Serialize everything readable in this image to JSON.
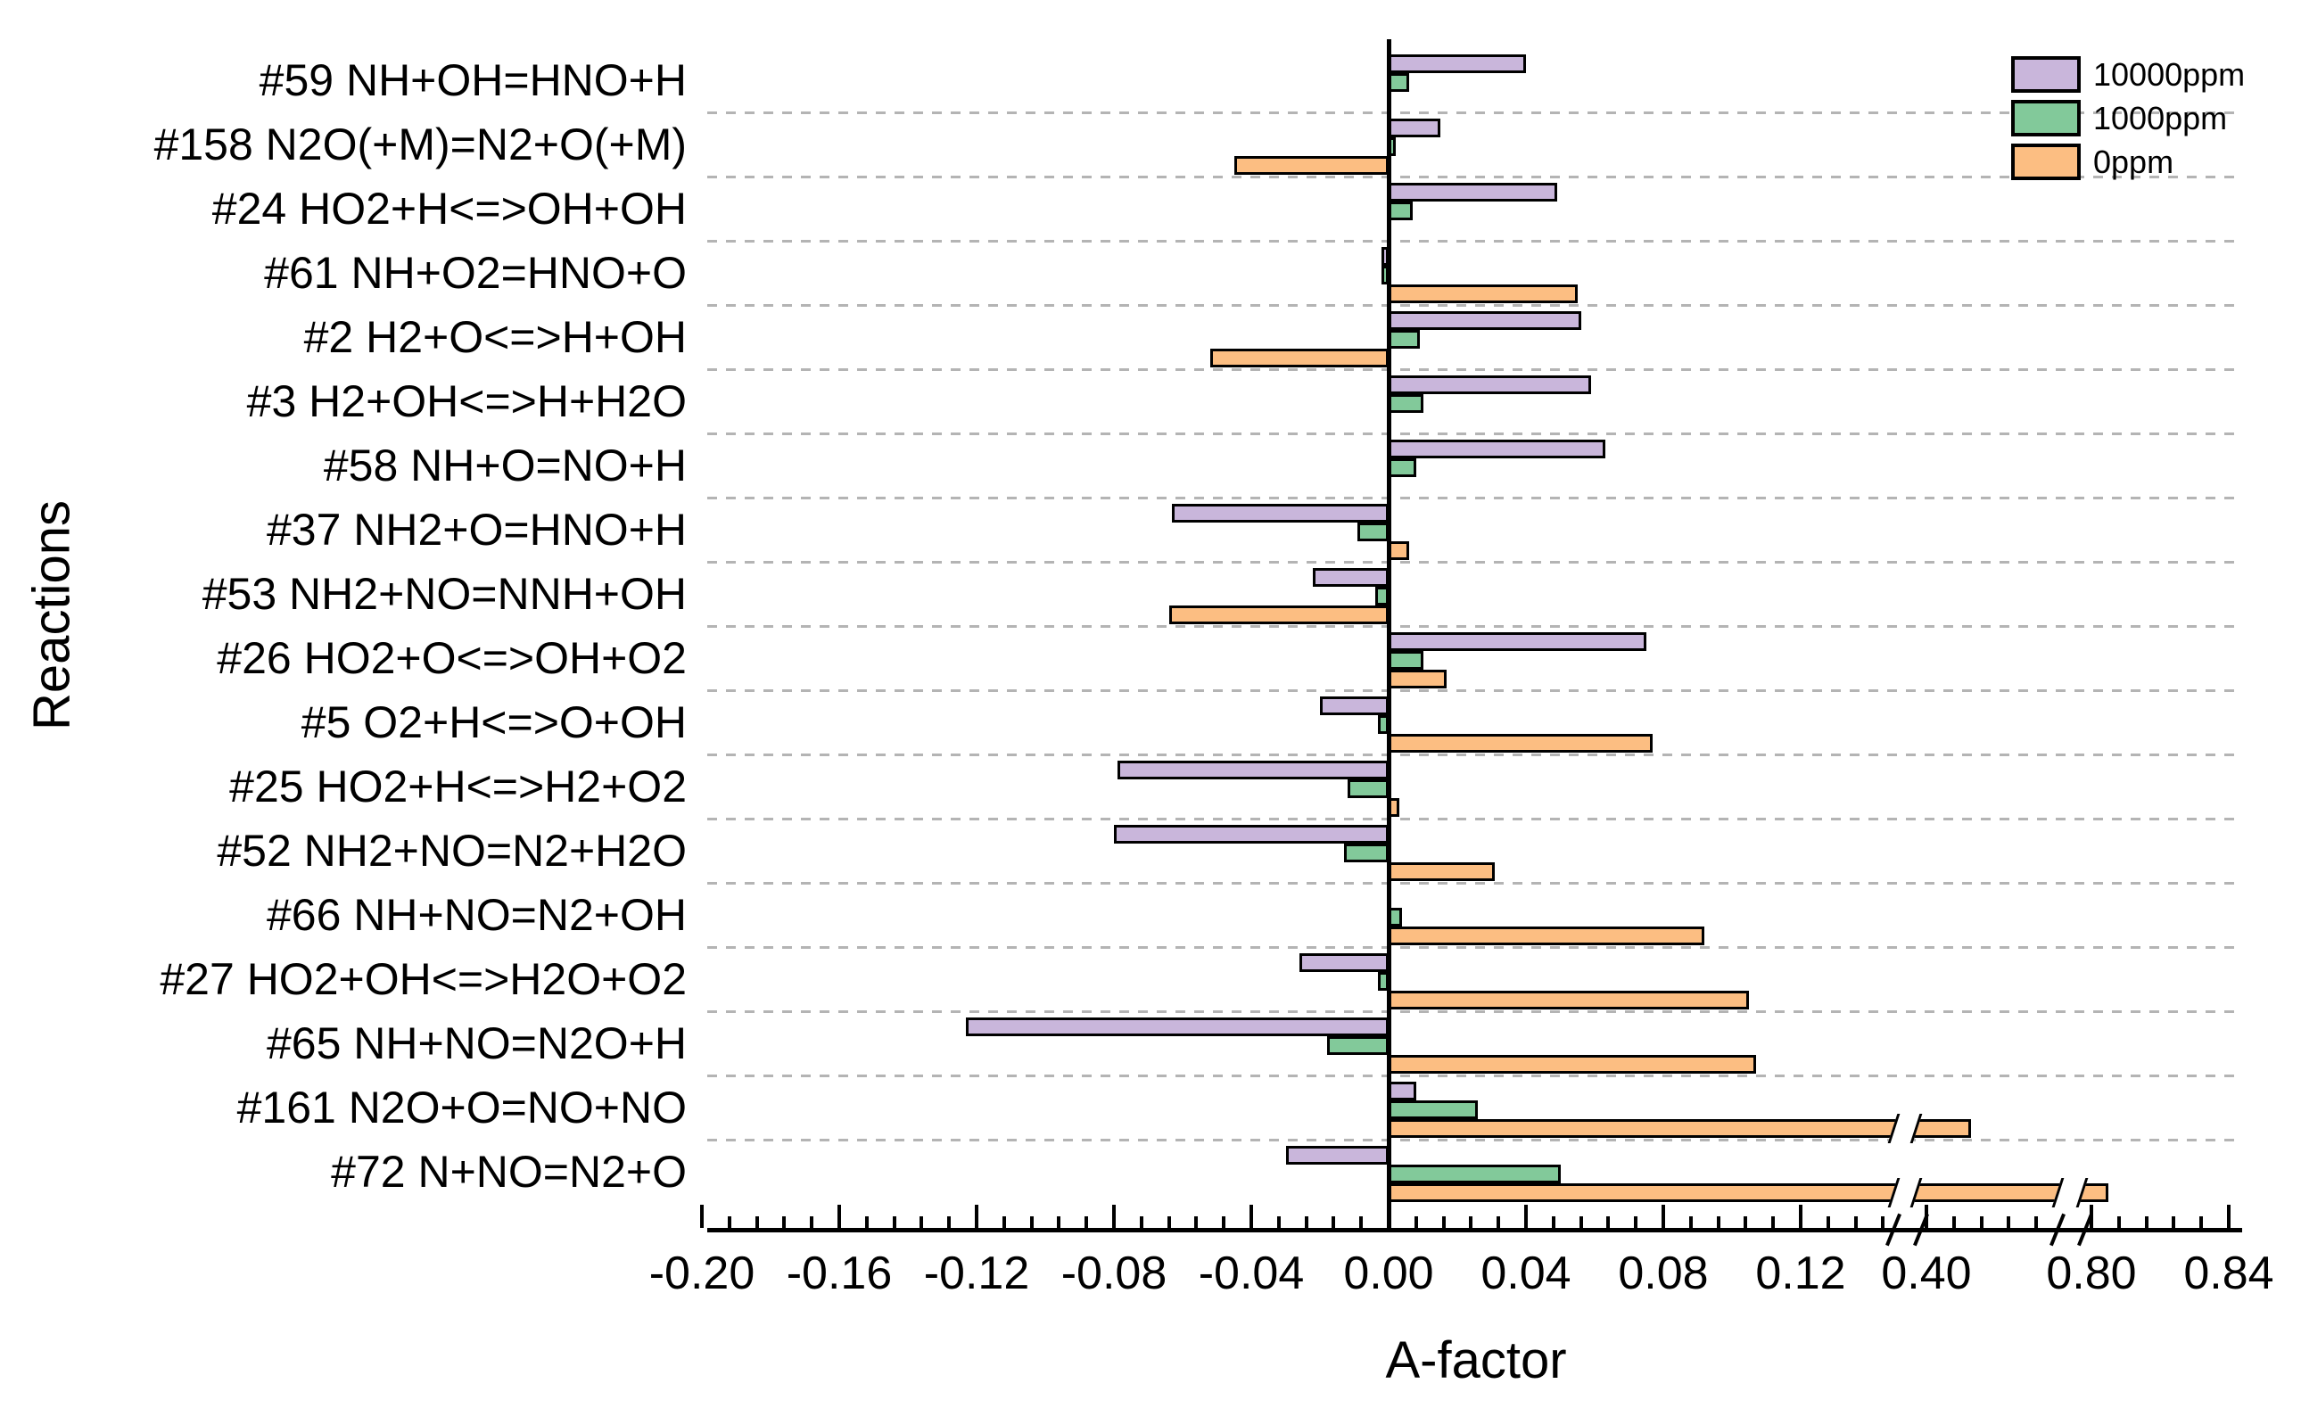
{
  "figure": {
    "background": "#ffffff"
  },
  "chart_data": {
    "type": "bar",
    "orientation": "horizontal",
    "title": "",
    "xlabel": "A-factor",
    "ylabel": "Reactions",
    "grid": "dashed gray separators between category rows",
    "legend_position": "top-right",
    "categories": [
      "#59 NH+OH=HNO+H",
      "#158 N2O(+M)=N2+O(+M)",
      "#24 HO2+H<=>OH+OH",
      "#61 NH+O2=HNO+O",
      "#2 H2+O<=>H+OH",
      "#3 H2+OH<=>H+H2O",
      "#58 NH+O=NO+H",
      "#37 NH2+O=HNO+H",
      "#53 NH2+NO=NNH+OH",
      "#26 HO2+O<=>OH+O2",
      "#5 O2+H<=>O+OH",
      "#25 HO2+H<=>H2+O2",
      "#52 NH2+NO=N2+H2O",
      "#66 NH+NO=N2+OH",
      "#27 HO2+OH<=>H2O+O2",
      "#65 NH+NO=N2O+H",
      "#161 N2O+O=NO+NO",
      "#72 N+NO=N2+O"
    ],
    "series": [
      {
        "name": "10000ppm",
        "color": "#c9b6db",
        "values": [
          0.04,
          0.015,
          0.049,
          -0.002,
          0.056,
          0.059,
          0.063,
          -0.063,
          -0.022,
          0.075,
          -0.02,
          -0.079,
          -0.08,
          0,
          -0.026,
          -0.123,
          0.008,
          -0.03
        ]
      },
      {
        "name": "1000ppm",
        "color": "#82c99a",
        "values": [
          0.006,
          0.002,
          0.007,
          -0.002,
          0.009,
          0.01,
          0.008,
          -0.009,
          -0.004,
          0.01,
          -0.003,
          -0.012,
          -0.013,
          0.004,
          -0.003,
          -0.018,
          0.026,
          0.05
        ]
      },
      {
        "name": "0ppm",
        "color": "#fcbe82",
        "values": [
          0,
          -0.045,
          0,
          0.055,
          -0.052,
          0,
          0,
          0.006,
          -0.064,
          0.017,
          0.077,
          0.003,
          0.031,
          0.092,
          0.105,
          0.107,
          0.413,
          0.805
        ]
      }
    ],
    "x_axis": {
      "major_ticks": [
        {
          "label": "-0.20",
          "value": -0.2
        },
        {
          "label": "-0.16",
          "value": -0.16
        },
        {
          "label": "-0.12",
          "value": -0.12
        },
        {
          "label": "-0.08",
          "value": -0.08
        },
        {
          "label": "-0.04",
          "value": -0.04
        },
        {
          "label": "0.00",
          "value": 0.0
        },
        {
          "label": "0.04",
          "value": 0.04
        },
        {
          "label": "0.08",
          "value": 0.08
        },
        {
          "label": "0.12",
          "value": 0.12
        },
        {
          "label": "0.40",
          "value": 0.4
        },
        {
          "label": "0.80",
          "value": 0.8
        },
        {
          "label": "0.84",
          "value": 0.84
        }
      ],
      "minor_tick_step": 0.008,
      "axis_breaks": [
        {
          "after_value": 0.144,
          "resume_value": 0.4
        },
        {
          "after_value": 0.436,
          "resume_value": 0.8
        }
      ]
    },
    "legend": {
      "entries": [
        {
          "label": "10000ppm",
          "color": "#c9b6db"
        },
        {
          "label": "1000ppm",
          "color": "#82c99a"
        },
        {
          "label": "0ppm",
          "color": "#fcbe82"
        }
      ]
    }
  }
}
